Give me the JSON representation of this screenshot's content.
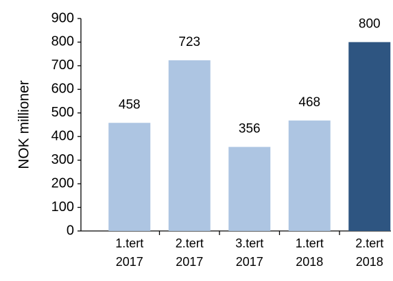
{
  "chart_data": {
    "type": "bar",
    "y_label": "NOK millioner",
    "categories": [
      [
        "1.tert",
        "2017"
      ],
      [
        "2.tert",
        "2017"
      ],
      [
        "3.tert",
        "2017"
      ],
      [
        "1.tert",
        "2018"
      ],
      [
        "2.tert",
        "2018"
      ]
    ],
    "values": [
      458,
      723,
      356,
      468,
      800
    ],
    "colors": [
      "#adc5e2",
      "#adc5e2",
      "#adc5e2",
      "#adc5e2",
      "#2e5581"
    ],
    "ylim": [
      0,
      900
    ],
    "yticks": [
      0,
      100,
      200,
      300,
      400,
      500,
      600,
      700,
      800,
      900
    ],
    "grid": false
  }
}
